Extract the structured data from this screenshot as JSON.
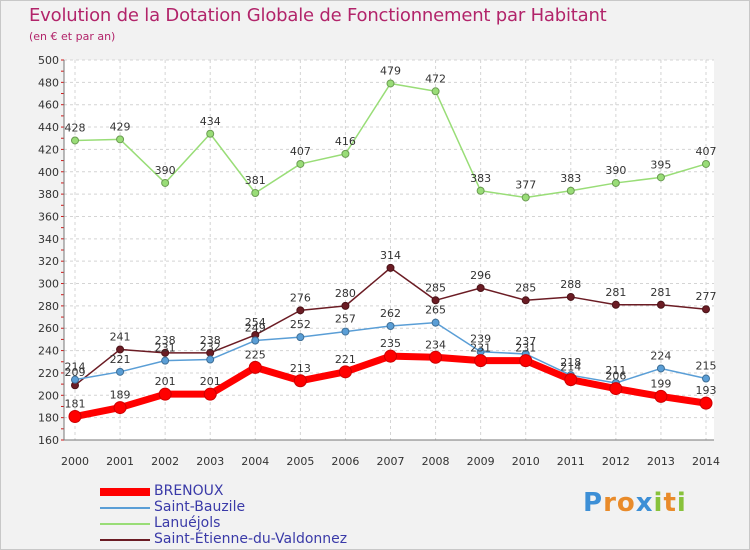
{
  "title": "Evolution de la Dotation Globale de Fonctionnement par Habitant",
  "subtitle": "(en € et par an)",
  "logo": {
    "text": "Proxiti",
    "letters": [
      {
        "ch": "P",
        "color": "#3d8fd6"
      },
      {
        "ch": "r",
        "color": "#e98b2a"
      },
      {
        "ch": "o",
        "color": "#e98b2a"
      },
      {
        "ch": "x",
        "color": "#3d8fd6"
      },
      {
        "ch": "i",
        "color": "#88c23b"
      },
      {
        "ch": "t",
        "color": "#e98b2a"
      },
      {
        "ch": "i",
        "color": "#88c23b"
      }
    ]
  },
  "chart_data": {
    "type": "line",
    "title": "Evolution de la Dotation Globale de Fonctionnement par Habitant",
    "subtitle": "(en € et par an)",
    "xlabel": "",
    "ylabel": "",
    "ylim": [
      160,
      500
    ],
    "yticks": [
      160,
      180,
      200,
      220,
      240,
      260,
      280,
      300,
      320,
      340,
      360,
      380,
      400,
      420,
      440,
      460,
      480,
      500
    ],
    "grid": true,
    "legend": "bottom-left",
    "x": [
      "2000",
      "2001",
      "2002",
      "2003",
      "2004",
      "2005",
      "2006",
      "2007",
      "2008",
      "2009",
      "2010",
      "2011",
      "2012",
      "2013",
      "2014"
    ],
    "series": [
      {
        "name": "BRENOUX",
        "color": "#ff0000",
        "values": [
          181,
          189,
          201,
          201,
          225,
          213,
          221,
          235,
          234,
          231,
          231,
          214,
          206,
          199,
          193
        ]
      },
      {
        "name": "Saint-Bauzile",
        "color": "#5a9ed6",
        "values": [
          214,
          221,
          231,
          232,
          249,
          252,
          257,
          262,
          265,
          239,
          237,
          218,
          211,
          224,
          215
        ]
      },
      {
        "name": "Lanuéjols",
        "color": "#99dd77",
        "values": [
          428,
          429,
          390,
          434,
          381,
          407,
          416,
          479,
          472,
          383,
          377,
          383,
          390,
          395,
          407
        ]
      },
      {
        "name": "Saint-Étienne-du-Valdonnez",
        "color": "#6b1c24",
        "values": [
          209,
          241,
          238,
          238,
          254,
          276,
          280,
          314,
          285,
          296,
          285,
          288,
          281,
          281,
          277
        ]
      }
    ]
  }
}
